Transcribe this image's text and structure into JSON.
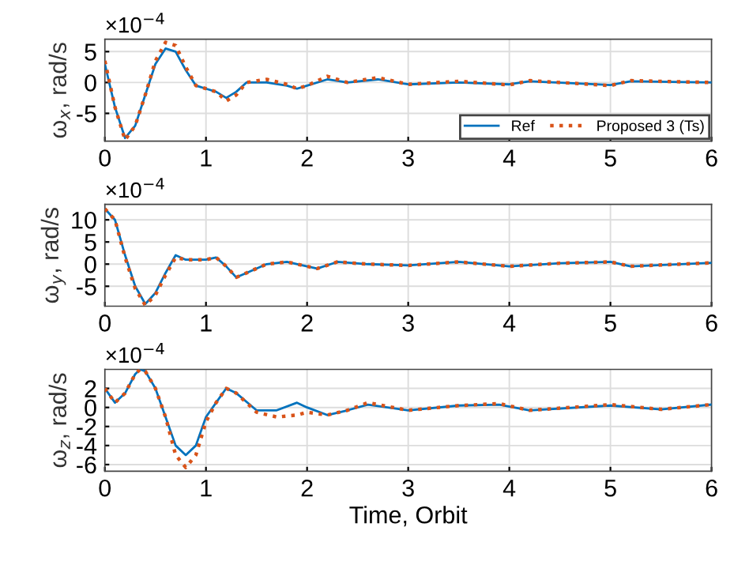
{
  "chart_data": [
    {
      "type": "line",
      "ylabel": "ω$_{x}$, rad/s",
      "annotations": [
        "×10$^{−4}$"
      ],
      "xlim": [
        0,
        6
      ],
      "xticks": [
        0,
        1,
        2,
        3,
        4,
        5,
        6
      ],
      "ylim": [
        -9.5,
        7
      ],
      "yticks": [
        -5,
        0,
        5
      ],
      "grid": true,
      "legend": "bottom right",
      "x": [
        0,
        0.1,
        0.2,
        0.3,
        0.4,
        0.5,
        0.6,
        0.7,
        0.8,
        0.9,
        1.0,
        1.1,
        1.2,
        1.3,
        1.4,
        1.6,
        1.8,
        1.9,
        2.0,
        2.2,
        2.4,
        2.7,
        3.0,
        3.5,
        4.0,
        4.2,
        5.0,
        5.2,
        6
      ],
      "series": [
        {
          "name": "Ref",
          "color": "#0072bd",
          "line_style": "solid",
          "values": [
            3,
            -4,
            -9,
            -7,
            -2,
            3,
            5.5,
            5,
            2,
            -0.5,
            -1,
            -1.5,
            -2.5,
            -1.5,
            0,
            0,
            -0.5,
            -1,
            -0.5,
            0.5,
            0,
            0.5,
            -0.3,
            0,
            -0.3,
            0.2,
            -0.4,
            0.2,
            0
          ]
        },
        {
          "name": "Proposed 3 (Ts)",
          "color": "#d95319",
          "line_style": "dotted",
          "values": [
            3.5,
            -4,
            -9.3,
            -7,
            -2,
            3.5,
            6.5,
            6,
            2.5,
            -0.5,
            -1,
            -1.5,
            -3,
            -2,
            0,
            0.5,
            -0.3,
            -1,
            -0.5,
            1,
            0,
            0.8,
            -0.3,
            0.2,
            -0.4,
            0.3,
            -0.5,
            0.3,
            0
          ]
        }
      ]
    },
    {
      "type": "line",
      "ylabel": "ω$_{y}$, rad/s",
      "annotations": [
        "×10$^{−4}$"
      ],
      "xlim": [
        0,
        6
      ],
      "xticks": [
        0,
        1,
        2,
        3,
        4,
        5,
        6
      ],
      "ylim": [
        -9.5,
        13.5
      ],
      "yticks": [
        -5,
        0,
        5,
        10
      ],
      "grid": true,
      "x": [
        0,
        0.1,
        0.2,
        0.3,
        0.4,
        0.5,
        0.6,
        0.7,
        0.8,
        0.9,
        1.0,
        1.1,
        1.2,
        1.3,
        1.4,
        1.6,
        1.8,
        2.0,
        2.1,
        2.3,
        2.6,
        3.0,
        3.5,
        4.0,
        4.5,
        5.0,
        5.2,
        6
      ],
      "series": [
        {
          "color": "#0072bd",
          "line_style": "solid",
          "values": [
            12.5,
            10,
            2,
            -5,
            -9,
            -6.5,
            -2,
            2,
            1,
            1,
            1,
            1.5,
            -0.5,
            -3,
            -2,
            0,
            0.5,
            -0.5,
            -1,
            0.5,
            0,
            -0.3,
            0.5,
            -0.5,
            0.2,
            0.5,
            -0.5,
            0.3
          ]
        },
        {
          "color": "#d95319",
          "line_style": "dotted",
          "values": [
            12.5,
            10,
            1.5,
            -5.5,
            -9.3,
            -7,
            -2.5,
            1.5,
            1,
            1,
            1,
            1.5,
            -0.5,
            -3,
            -2,
            0,
            0.5,
            -0.5,
            -1,
            0.5,
            0,
            -0.3,
            0.5,
            -0.5,
            0.2,
            0.5,
            -0.5,
            0.3
          ]
        }
      ]
    },
    {
      "type": "line",
      "ylabel": "ω$_{z}$, rad/s",
      "xlabel": "Time, Orbit",
      "annotations": [
        "×10$^{−4}$"
      ],
      "xlim": [
        0,
        6
      ],
      "xticks": [
        0,
        1,
        2,
        3,
        4,
        5,
        6
      ],
      "ylim": [
        -6.7,
        4
      ],
      "yticks": [
        -6,
        -4,
        -2,
        0,
        2
      ],
      "grid": true,
      "x": [
        0,
        0.1,
        0.2,
        0.3,
        0.35,
        0.4,
        0.5,
        0.6,
        0.7,
        0.8,
        0.9,
        1.0,
        1.1,
        1.2,
        1.3,
        1.5,
        1.7,
        1.9,
        2.0,
        2.2,
        2.4,
        2.6,
        3.0,
        3.5,
        3.9,
        4.2,
        5.0,
        5.5,
        6
      ],
      "series": [
        {
          "color": "#0072bd",
          "line_style": "solid",
          "values": [
            2,
            0.5,
            1.5,
            3.5,
            4,
            3.8,
            2,
            -1,
            -4,
            -5,
            -4,
            -1,
            0.5,
            2,
            1.5,
            -0.3,
            -0.3,
            0.5,
            0,
            -0.8,
            -0.3,
            0.3,
            -0.3,
            0.2,
            0.3,
            -0.3,
            0.2,
            -0.2,
            0.3
          ]
        },
        {
          "color": "#d95319",
          "line_style": "dotted",
          "values": [
            2,
            0.5,
            1.5,
            3.5,
            4,
            3.8,
            2,
            -1,
            -5,
            -6.3,
            -5,
            -1.5,
            0.5,
            2,
            1.5,
            -0.5,
            -1,
            -0.8,
            -0.5,
            -0.8,
            -0.3,
            0.5,
            -0.3,
            0.2,
            0.4,
            -0.3,
            0.3,
            -0.2,
            0.3
          ]
        }
      ]
    }
  ]
}
